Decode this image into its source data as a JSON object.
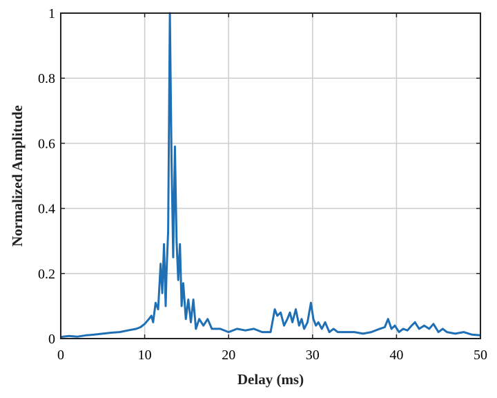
{
  "chart_data": {
    "type": "line",
    "title": "",
    "xlabel": "Delay (ms)",
    "ylabel": "Normalized Amplitude",
    "xlim": [
      0,
      50
    ],
    "ylim": [
      0,
      1
    ],
    "xticks": [
      0,
      10,
      20,
      30,
      40,
      50
    ],
    "yticks": [
      0,
      0.2,
      0.4,
      0.6,
      0.8,
      1
    ],
    "xtick_labels": [
      "0",
      "10",
      "20",
      "30",
      "40",
      "50"
    ],
    "ytick_labels": [
      "0",
      "0.2",
      "0.4",
      "0.6",
      "0.8",
      "1"
    ],
    "grid": true,
    "series": [
      {
        "color": "#1f6fb5",
        "x": [
          0,
          1,
          2,
          3,
          4,
          5,
          6,
          7,
          8,
          9,
          9.5,
          10,
          10.5,
          10.8,
          11,
          11.3,
          11.6,
          11.9,
          12.1,
          12.3,
          12.5,
          12.6,
          12.8,
          13.0,
          13.2,
          13.4,
          13.6,
          13.8,
          14.0,
          14.2,
          14.4,
          14.6,
          14.9,
          15.2,
          15.5,
          15.8,
          16.1,
          16.5,
          17.0,
          17.5,
          18,
          19,
          20,
          21,
          22,
          23,
          24,
          25,
          25.5,
          25.8,
          26.2,
          26.6,
          27,
          27.3,
          27.6,
          28,
          28.4,
          28.7,
          29.0,
          29.4,
          29.8,
          30.1,
          30.4,
          30.7,
          31.1,
          31.5,
          32,
          32.5,
          33,
          34,
          35,
          36,
          37,
          38,
          38.6,
          39.0,
          39.4,
          39.8,
          40.3,
          40.8,
          41.3,
          41.8,
          42.2,
          42.7,
          43.3,
          43.9,
          44.4,
          45,
          45.5,
          46,
          47,
          48,
          49,
          50
        ],
        "y": [
          0.005,
          0.008,
          0.006,
          0.01,
          0.012,
          0.015,
          0.018,
          0.02,
          0.025,
          0.03,
          0.035,
          0.045,
          0.06,
          0.07,
          0.05,
          0.11,
          0.09,
          0.23,
          0.14,
          0.29,
          0.1,
          0.2,
          0.33,
          1.0,
          0.55,
          0.25,
          0.59,
          0.3,
          0.18,
          0.29,
          0.1,
          0.17,
          0.06,
          0.12,
          0.05,
          0.12,
          0.03,
          0.06,
          0.04,
          0.06,
          0.03,
          0.03,
          0.02,
          0.03,
          0.025,
          0.03,
          0.02,
          0.02,
          0.09,
          0.07,
          0.08,
          0.04,
          0.06,
          0.08,
          0.05,
          0.09,
          0.04,
          0.06,
          0.03,
          0.05,
          0.11,
          0.06,
          0.04,
          0.05,
          0.03,
          0.05,
          0.02,
          0.03,
          0.02,
          0.02,
          0.02,
          0.015,
          0.02,
          0.03,
          0.035,
          0.06,
          0.03,
          0.04,
          0.02,
          0.03,
          0.025,
          0.04,
          0.05,
          0.03,
          0.04,
          0.03,
          0.045,
          0.02,
          0.03,
          0.02,
          0.015,
          0.02,
          0.012,
          0.01
        ]
      }
    ]
  }
}
